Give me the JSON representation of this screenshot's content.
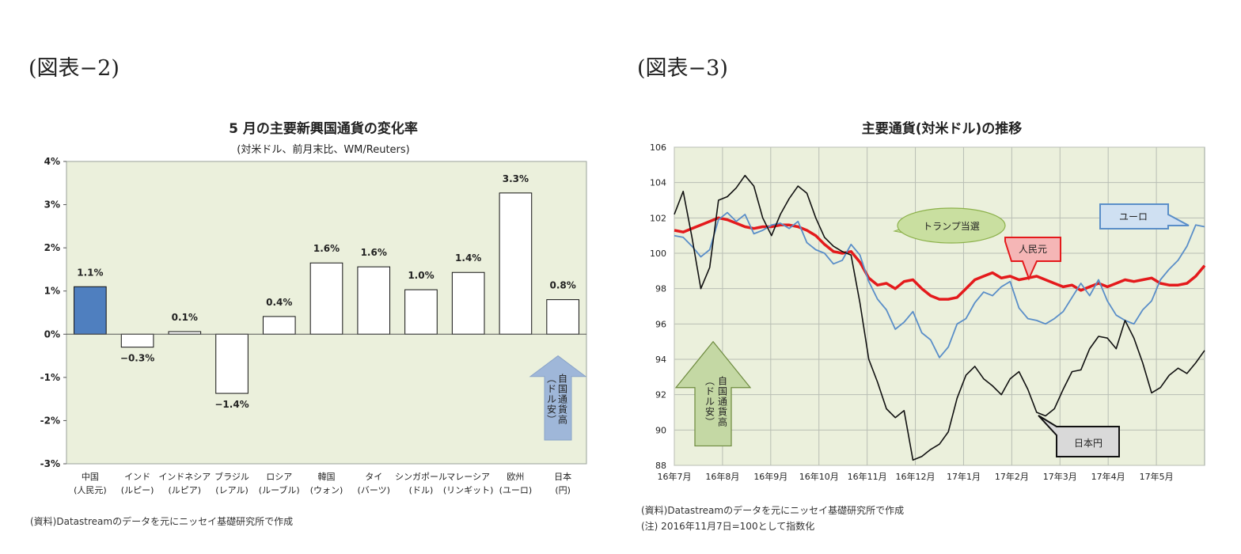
{
  "figures": [
    {
      "label": "(図表−2)",
      "source_note": "(資料)Datastreamのデータを元にニッセイ基礎研究所で作成"
    },
    {
      "label": "(図表−3)",
      "source_note": "(資料)Datastreamのデータを元にニッセイ基礎研究所で作成",
      "extra_note": "(注) 2016年11月7日=100として指数化"
    }
  ],
  "chart_data": [
    {
      "type": "bar",
      "title": "5 月の主要新興国通貨の変化率",
      "subtitle": "(対米ドル、前月末比、WM/Reuters)",
      "categories": [
        [
          "中国",
          "(人民元)"
        ],
        [
          "インド",
          "(ルピー)"
        ],
        [
          "インドネシア",
          "(ルピア)"
        ],
        [
          "ブラジル",
          "(レアル)"
        ],
        [
          "ロシア",
          "(ルーブル)"
        ],
        [
          "韓国",
          "(ウォン)"
        ],
        [
          "タイ",
          "(バーツ)"
        ],
        [
          "シンガポール",
          "(ドル)"
        ],
        [
          "マレーシア",
          "(リンギット)"
        ],
        [
          "欧州",
          "(ユーロ)"
        ],
        [
          "日本",
          "(円)"
        ]
      ],
      "values": [
        1.1,
        -0.3,
        0.1,
        -1.4,
        0.4,
        1.6,
        1.6,
        1.0,
        1.4,
        3.3,
        0.8
      ],
      "data_labels": [
        "1.1%",
        "−0.3%",
        "0.1%",
        "−1.4%",
        "0.4%",
        "1.6%",
        "1.6%",
        "1.0%",
        "1.4%",
        "3.3%",
        "0.8%"
      ],
      "bar_heights": [
        1.1,
        -0.3,
        0.06,
        -1.37,
        0.41,
        1.65,
        1.56,
        1.03,
        1.43,
        3.27,
        0.8
      ],
      "highlight_index": 0,
      "highlight_color": "#4f7fbf",
      "plot_bg": "#ebf0dc",
      "yticks": [
        "4%",
        "3%",
        "2%",
        "1%",
        "0%",
        "-1%",
        "-2%",
        "-3%"
      ],
      "ylim": [
        -3,
        4
      ],
      "annotation": {
        "text": "自国通貨高\n(ドル安)",
        "color": "#9fb7d9"
      }
    },
    {
      "type": "line",
      "title": "主要通貨(対米ドル)の推移",
      "plot_bg": "#ebf0dc",
      "ylim": [
        88,
        106
      ],
      "yticks": [
        "106",
        "104",
        "102",
        "100",
        "98",
        "96",
        "94",
        "92",
        "90",
        "88"
      ],
      "xticks": [
        "16年7月",
        "16年8月",
        "16年9月",
        "16年10月",
        "16年11月",
        "16年12月",
        "17年1月",
        "17年2月",
        "17年3月",
        "17年4月",
        "17年5月"
      ],
      "series": [
        {
          "name": "人民元",
          "color": "#e41a1c",
          "values": [
            101.3,
            101.2,
            101.4,
            101.6,
            101.8,
            102.0,
            101.9,
            101.7,
            101.5,
            101.4,
            101.5,
            101.5,
            101.6,
            101.6,
            101.5,
            101.3,
            101.0,
            100.5,
            100.1,
            100.0,
            100.1,
            99.5,
            98.6,
            98.2,
            98.3,
            98.0,
            98.4,
            98.5,
            98.0,
            97.6,
            97.4,
            97.4,
            97.5,
            98.0,
            98.5,
            98.7,
            98.9,
            98.6,
            98.7,
            98.5,
            98.6,
            98.7,
            98.5,
            98.3,
            98.1,
            98.2,
            97.9,
            98.1,
            98.3,
            98.1,
            98.3,
            98.5,
            98.4,
            98.5,
            98.6,
            98.3,
            98.2,
            98.2,
            98.3,
            98.7,
            99.3
          ]
        },
        {
          "name": "ユーロ",
          "color": "#5a8ec8",
          "values": [
            101.0,
            100.9,
            100.4,
            99.8,
            100.2,
            101.9,
            102.3,
            101.8,
            102.2,
            101.1,
            101.3,
            101.6,
            101.7,
            101.4,
            101.8,
            100.6,
            100.2,
            100.0,
            99.4,
            99.6,
            100.5,
            99.9,
            98.4,
            97.4,
            96.8,
            95.7,
            96.1,
            96.7,
            95.5,
            95.1,
            94.1,
            94.7,
            96.0,
            96.3,
            97.2,
            97.8,
            97.6,
            98.1,
            98.4,
            96.9,
            96.3,
            96.2,
            96.0,
            96.3,
            96.7,
            97.5,
            98.3,
            97.6,
            98.5,
            97.3,
            96.5,
            96.2,
            96.0,
            96.8,
            97.3,
            98.5,
            99.1,
            99.6,
            100.4,
            101.6,
            101.5
          ]
        },
        {
          "name": "日本円",
          "color": "#111111",
          "values": [
            102.2,
            103.5,
            100.9,
            98.0,
            99.2,
            103.0,
            103.2,
            103.7,
            104.4,
            103.8,
            102.0,
            101.0,
            102.2,
            103.1,
            103.8,
            103.4,
            102.0,
            100.9,
            100.4,
            100.1,
            99.9,
            97.2,
            94.0,
            92.7,
            91.2,
            90.7,
            91.1,
            88.3,
            88.5,
            88.9,
            89.2,
            89.9,
            91.8,
            93.1,
            93.6,
            92.9,
            92.5,
            92.0,
            92.9,
            93.3,
            92.3,
            91.0,
            90.8,
            91.2,
            92.3,
            93.3,
            93.4,
            94.6,
            95.3,
            95.2,
            94.6,
            96.2,
            95.2,
            93.8,
            92.1,
            92.4,
            93.1,
            93.5,
            93.2,
            93.8,
            94.5
          ]
        }
      ],
      "callouts": [
        {
          "text": "トランプ当選",
          "color": "#c9dfa0",
          "border": "#8cb14b"
        },
        {
          "text": "人民元",
          "color": "#f5b6b6",
          "border": "#e41a1c"
        },
        {
          "text": "ユーロ",
          "color": "#cfe0f2",
          "border": "#5a8ec8"
        },
        {
          "text": "日本円",
          "color": "#d9d9d9",
          "border": "#111111"
        }
      ],
      "annotation": {
        "text": "自国通貨高\n(ドル安)",
        "color": "#c4d8a4"
      }
    }
  ]
}
